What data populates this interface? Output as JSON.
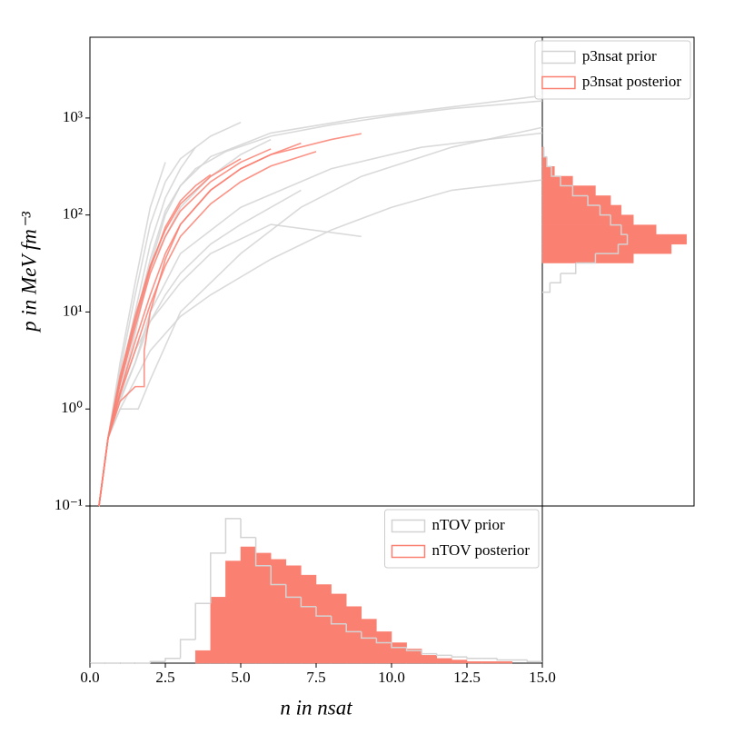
{
  "chart_data": [
    {
      "type": "line",
      "ylabel": "p in MeV fm⁻³",
      "xlim": [
        0,
        15
      ],
      "ylim": [
        0.1,
        6800
      ],
      "yscale": "log",
      "yticks": [
        {
          "value": 0.1,
          "label": "10⁻¹"
        },
        {
          "value": 1,
          "label": "10⁰"
        },
        {
          "value": 10,
          "label": "10¹"
        },
        {
          "value": 100,
          "label": "10²"
        },
        {
          "value": 1000,
          "label": "10³"
        }
      ],
      "series": [
        {
          "color": "#d3d3d3",
          "x": [
            0.3,
            0.6,
            1,
            1.5,
            2,
            2.5,
            3,
            4,
            6,
            9,
            12,
            15
          ],
          "values": [
            0.1,
            0.5,
            1.5,
            6,
            30,
            100,
            200,
            400,
            700,
            1000,
            1300,
            1700
          ]
        },
        {
          "color": "#d3d3d3",
          "x": [
            0.3,
            0.6,
            1,
            1.5,
            2,
            2.5
          ],
          "values": [
            0.1,
            0.5,
            3,
            20,
            120,
            350
          ]
        },
        {
          "color": "#d3d3d3",
          "x": [
            0.3,
            0.6,
            1,
            1.5,
            2,
            2.5,
            3,
            3.5
          ],
          "values": [
            0.1,
            0.5,
            2,
            10,
            50,
            150,
            300,
            500
          ]
        },
        {
          "color": "#d3d3d3",
          "x": [
            0.3,
            0.6,
            1,
            1.5,
            2,
            3,
            4,
            6,
            8,
            10,
            12,
            15
          ],
          "values": [
            0.1,
            0.5,
            1,
            2,
            4,
            9,
            15,
            35,
            70,
            120,
            180,
            230
          ]
        },
        {
          "color": "#d3d3d3",
          "x": [
            0.3,
            0.6,
            1,
            1.6,
            2,
            3,
            5,
            7,
            9,
            12,
            15
          ],
          "values": [
            0.1,
            0.5,
            1,
            1,
            2,
            10,
            40,
            120,
            250,
            500,
            800
          ]
        },
        {
          "color": "#d3d3d3",
          "x": [
            0.3,
            0.6,
            1,
            1.5,
            2,
            2.5,
            3,
            4,
            5,
            7
          ],
          "values": [
            0.1,
            0.5,
            1.5,
            4,
            8,
            15,
            25,
            50,
            80,
            180
          ]
        },
        {
          "color": "#d3d3d3",
          "x": [
            0.3,
            0.6,
            1,
            1.5,
            2,
            3,
            4,
            5,
            6
          ],
          "values": [
            0.1,
            0.5,
            2,
            8,
            30,
            120,
            250,
            420,
            600
          ]
        },
        {
          "color": "#d3d3d3",
          "x": [
            0.3,
            0.6,
            1,
            1.5,
            2,
            3,
            5,
            8,
            11,
            15
          ],
          "values": [
            0.1,
            0.5,
            1.3,
            3,
            10,
            40,
            120,
            300,
            500,
            700
          ]
        },
        {
          "color": "#d3d3d3",
          "x": [
            0.3,
            0.6,
            1,
            1.5,
            2,
            3,
            4,
            6,
            9
          ],
          "values": [
            0.1,
            0.5,
            1.2,
            3,
            8,
            20,
            40,
            80,
            60
          ]
        },
        {
          "color": "#d3d3d3",
          "x": [
            0.3,
            0.6,
            1,
            1.5,
            2,
            2.5,
            3,
            4,
            5
          ],
          "values": [
            0.1,
            0.5,
            2.5,
            15,
            80,
            220,
            380,
            650,
            900
          ]
        },
        {
          "color": "#d3d3d3",
          "x": [
            0.3,
            0.6,
            1,
            1.5,
            2,
            2.5,
            3,
            3.5,
            4.5,
            6,
            8,
            10,
            12,
            15
          ],
          "values": [
            0.1,
            0.5,
            1.8,
            8,
            35,
            110,
            200,
            300,
            450,
            650,
            850,
            1050,
            1250,
            1500
          ]
        },
        {
          "color": "#fa8072",
          "x": [
            0.3,
            0.6,
            1,
            1.5,
            2,
            2.5,
            3,
            4,
            5,
            6,
            7
          ],
          "values": [
            0.1,
            0.5,
            1.5,
            5,
            15,
            40,
            80,
            180,
            300,
            420,
            550
          ]
        },
        {
          "color": "#fa8072",
          "x": [
            0.3,
            0.6,
            1,
            1.5,
            2,
            2.5,
            3,
            4,
            5,
            6
          ],
          "values": [
            0.1,
            0.5,
            1.8,
            7,
            25,
            60,
            110,
            220,
            350,
            480
          ]
        },
        {
          "color": "#fa8072",
          "x": [
            0.3,
            0.6,
            1,
            1.5,
            1.8,
            1.8,
            2,
            2.5,
            3,
            4,
            5,
            6,
            8,
            9
          ],
          "values": [
            0.1,
            0.5,
            1.2,
            1.7,
            1.7,
            4,
            10,
            35,
            80,
            180,
            300,
            420,
            600,
            690
          ]
        },
        {
          "color": "#fa8072",
          "x": [
            0.3,
            0.6,
            1,
            1.5,
            2,
            2.5,
            3,
            4,
            5
          ],
          "values": [
            0.1,
            0.5,
            2.2,
            9,
            30,
            70,
            130,
            250,
            380
          ]
        },
        {
          "color": "#fa8072",
          "x": [
            0.3,
            0.6,
            1,
            1.5,
            2,
            2.5,
            3,
            4,
            5,
            6,
            7.5
          ],
          "values": [
            0.1,
            0.5,
            1.4,
            4,
            12,
            30,
            60,
            130,
            220,
            320,
            450
          ]
        },
        {
          "color": "#fa8072",
          "x": [
            0.3,
            0.6,
            1,
            1.5,
            2,
            2.5,
            3,
            3.5,
            4
          ],
          "values": [
            0.1,
            0.5,
            2,
            8,
            28,
            75,
            140,
            200,
            260
          ]
        }
      ]
    },
    {
      "type": "histogram",
      "xlabel": "n in nsat",
      "xlim": [
        0,
        15
      ],
      "ylim": [
        0,
        100
      ],
      "xticks": [
        {
          "value": 0,
          "label": "0.0"
        },
        {
          "value": 2.5,
          "label": "2.5"
        },
        {
          "value": 5,
          "label": "5.0"
        },
        {
          "value": 7.5,
          "label": "7.5"
        },
        {
          "value": 10,
          "label": "10.0"
        },
        {
          "value": 12.5,
          "label": "12.5"
        },
        {
          "value": 15,
          "label": "15.0"
        }
      ],
      "bins": [
        0,
        0.5,
        1,
        1.5,
        2,
        2.5,
        3,
        3.5,
        4,
        4.5,
        5,
        5.5,
        6,
        6.5,
        7,
        7.5,
        8,
        8.5,
        9,
        9.5,
        10,
        10.5,
        11,
        11.5,
        12,
        12.5,
        13,
        13.5,
        14,
        14.5,
        15
      ],
      "legend": "upper right",
      "series": [
        {
          "name": "nTOV prior",
          "color": "#d3d3d3",
          "histtype": "step",
          "values": [
            0,
            0,
            0,
            0,
            1,
            3,
            15,
            38,
            70,
            92,
            80,
            62,
            50,
            42,
            36,
            30,
            25,
            20,
            16,
            13,
            10,
            8,
            6,
            5,
            4,
            3,
            3,
            2,
            2,
            1
          ]
        },
        {
          "name": "nTOV posterior",
          "color": "#fa8072",
          "histtype": "stepfilled",
          "values": [
            0,
            0,
            0,
            0,
            0,
            0,
            0,
            8,
            42,
            65,
            74,
            70,
            66,
            62,
            56,
            50,
            44,
            36,
            28,
            20,
            13,
            9,
            5,
            3,
            2,
            1,
            1,
            1,
            0,
            0
          ]
        }
      ]
    },
    {
      "type": "histogram",
      "orientation": "horizontal",
      "xlim": [
        0,
        100
      ],
      "ylim": [
        0.1,
        6800
      ],
      "yscale": "log",
      "bins": [
        16,
        20,
        25,
        32,
        40,
        50,
        63,
        79,
        100,
        126,
        158,
        200,
        251,
        316,
        398,
        501
      ],
      "legend": "upper right",
      "series": [
        {
          "name": "p3nsat prior",
          "color": "#d3d3d3",
          "histtype": "step",
          "values": [
            5,
            12,
            22,
            35,
            50,
            56,
            52,
            45,
            38,
            30,
            20,
            12,
            6,
            3,
            1
          ]
        },
        {
          "name": "p3nsat posterior",
          "color": "#fa8072",
          "histtype": "stepfilled",
          "values": [
            0,
            0,
            0,
            60,
            85,
            95,
            75,
            60,
            52,
            45,
            35,
            20,
            8,
            3,
            1
          ]
        }
      ]
    }
  ]
}
